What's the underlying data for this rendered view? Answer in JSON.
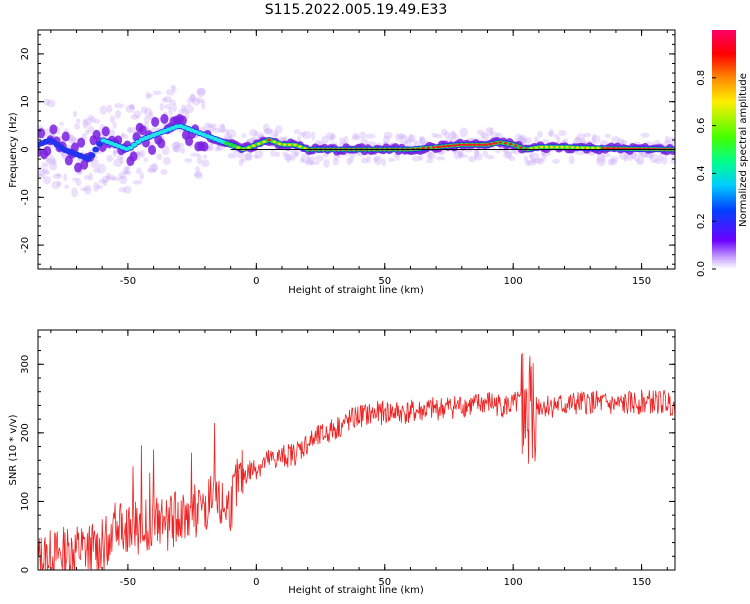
{
  "title": "S115.2022.005.19.49.E33",
  "colors": {
    "snr_line": "#ee2222",
    "ridge_center": "#ee2020",
    "ridge_mid": "#22dd44",
    "ridge_outer": "#2233ee",
    "ridge_halo": "#7a1fe0",
    "background": "#ffffff"
  },
  "chart_data": [
    {
      "type": "heatmap",
      "xlabel": "Height of straight line (km)",
      "ylabel": "Frequency (Hz)",
      "xlim": [
        -85,
        163
      ],
      "ylim": [
        -25,
        25
      ],
      "xticks": [
        -50,
        0,
        50,
        100,
        150
      ],
      "yticks": [
        -20,
        -10,
        0,
        10,
        20
      ],
      "colorbar": {
        "label": "Normalized spectral amplitude",
        "range": [
          0,
          1
        ],
        "ticks": [
          0.0,
          0.2,
          0.4,
          0.6,
          0.8
        ],
        "colormap": "gist_rainbow",
        "placement": "right"
      },
      "reference_line_y": 0,
      "ridge": {
        "height_km": [
          -85,
          -80,
          -75,
          -70,
          -65,
          -60,
          -55,
          -50,
          -45,
          -40,
          -35,
          -30,
          -25,
          -20,
          -15,
          -10,
          -5,
          0,
          5,
          10,
          15,
          20,
          30,
          40,
          50,
          60,
          70,
          80,
          90,
          95,
          100,
          105,
          110,
          120,
          130,
          140,
          150,
          163
        ],
        "frequency_hz": [
          1,
          2,
          0,
          -1,
          -2,
          2,
          1,
          0,
          2,
          3,
          4,
          5,
          4,
          3,
          2,
          1,
          0,
          1,
          2,
          1,
          1,
          0,
          0,
          0,
          0,
          0,
          0.5,
          1,
          1,
          1.5,
          1,
          0,
          0.5,
          0.5,
          0.3,
          0.2,
          0.1,
          0
        ],
        "peak_amplitude": [
          0.3,
          0.35,
          0.3,
          0.35,
          0.3,
          0.4,
          0.4,
          0.4,
          0.45,
          0.5,
          0.5,
          0.5,
          0.5,
          0.5,
          0.5,
          0.7,
          0.8,
          0.8,
          0.9,
          0.8,
          0.8,
          0.9,
          0.9,
          0.9,
          0.9,
          0.9,
          0.9,
          0.95,
          0.95,
          0.9,
          0.9,
          0.9,
          0.8,
          0.8,
          0.85,
          0.95,
          1.0,
          1.0
        ]
      },
      "grid": false
    },
    {
      "type": "line",
      "xlabel": "Height of straight line (km)",
      "ylabel": "SNR (10 * v/v)",
      "xlim": [
        -85,
        163
      ],
      "ylim": [
        0,
        350
      ],
      "xticks": [
        -50,
        0,
        50,
        100,
        150
      ],
      "yticks": [
        0,
        100,
        200,
        300
      ],
      "series": [
        {
          "x": [
            -85,
            -80,
            -75,
            -70,
            -65,
            -60,
            -57,
            -55,
            -50,
            -45,
            -40,
            -35,
            -30,
            -25,
            -20,
            -18,
            -15,
            -10,
            -8,
            -5,
            0,
            5,
            10,
            15,
            20,
            25,
            30,
            35,
            40,
            50,
            60,
            70,
            80,
            85,
            90,
            95,
            100,
            102,
            105,
            107,
            110,
            120,
            130,
            140,
            150,
            160,
            163
          ],
          "y": [
            15,
            20,
            25,
            30,
            30,
            35,
            50,
            80,
            60,
            60,
            70,
            65,
            80,
            85,
            85,
            100,
            90,
            95,
            120,
            140,
            150,
            160,
            165,
            170,
            185,
            195,
            205,
            215,
            225,
            230,
            230,
            235,
            240,
            240,
            245,
            240,
            240,
            245,
            235,
            240,
            240,
            240,
            245,
            240,
            245,
            245,
            240
          ],
          "noise_amplitude": 18
        }
      ],
      "grid": false
    }
  ]
}
